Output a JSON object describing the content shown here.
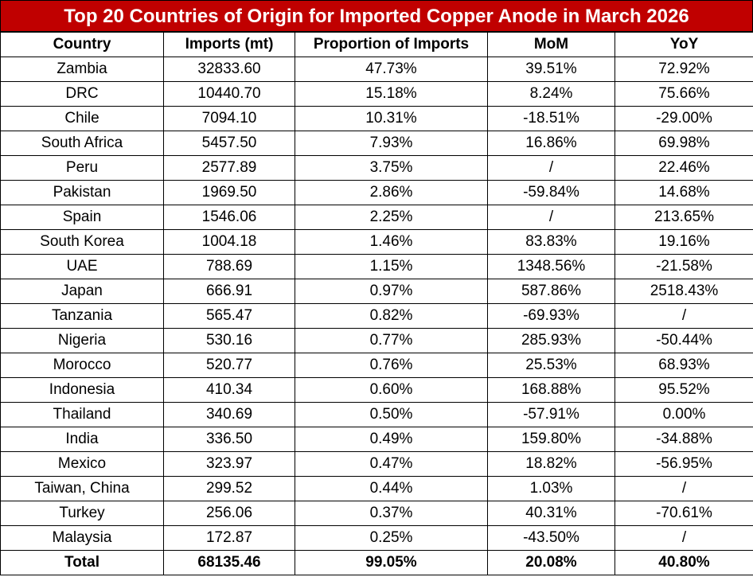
{
  "title": "Top 20 Countries of Origin for Imported Copper Anode in March 2026",
  "table": {
    "header": [
      "Country",
      "Imports (mt)",
      "Proportion of Imports",
      "MoM",
      "YoY"
    ],
    "rows": [
      [
        "Zambia",
        "32833.60",
        "47.73%",
        "39.51%",
        "72.92%"
      ],
      [
        "DRC",
        "10440.70",
        "15.18%",
        "8.24%",
        "75.66%"
      ],
      [
        "Chile",
        "7094.10",
        "10.31%",
        "-18.51%",
        "-29.00%"
      ],
      [
        "South Africa",
        "5457.50",
        "7.93%",
        "16.86%",
        "69.98%"
      ],
      [
        "Peru",
        "2577.89",
        "3.75%",
        "/",
        "22.46%"
      ],
      [
        "Pakistan",
        "1969.50",
        "2.86%",
        "-59.84%",
        "14.68%"
      ],
      [
        "Spain",
        "1546.06",
        "2.25%",
        "/",
        "213.65%"
      ],
      [
        "South Korea",
        "1004.18",
        "1.46%",
        "83.83%",
        "19.16%"
      ],
      [
        "UAE",
        "788.69",
        "1.15%",
        "1348.56%",
        "-21.58%"
      ],
      [
        "Japan",
        "666.91",
        "0.97%",
        "587.86%",
        "2518.43%"
      ],
      [
        "Tanzania",
        "565.47",
        "0.82%",
        "-69.93%",
        "/"
      ],
      [
        "Nigeria",
        "530.16",
        "0.77%",
        "285.93%",
        "-50.44%"
      ],
      [
        "Morocco",
        "520.77",
        "0.76%",
        "25.53%",
        "68.93%"
      ],
      [
        "Indonesia",
        "410.34",
        "0.60%",
        "168.88%",
        "95.52%"
      ],
      [
        "Thailand",
        "340.69",
        "0.50%",
        "-57.91%",
        "0.00%"
      ],
      [
        "India",
        "336.50",
        "0.49%",
        "159.80%",
        "-34.88%"
      ],
      [
        "Mexico",
        "323.97",
        "0.47%",
        "18.82%",
        "-56.95%"
      ],
      [
        "Taiwan, China",
        "299.52",
        "0.44%",
        "1.03%",
        "/"
      ],
      [
        "Turkey",
        "256.06",
        "0.37%",
        "40.31%",
        "-70.61%"
      ],
      [
        "Malaysia",
        "172.87",
        "0.25%",
        "-43.50%",
        "/"
      ]
    ],
    "total": [
      "Total",
      "68135.46",
      "99.05%",
      "20.08%",
      "40.80%"
    ]
  }
}
